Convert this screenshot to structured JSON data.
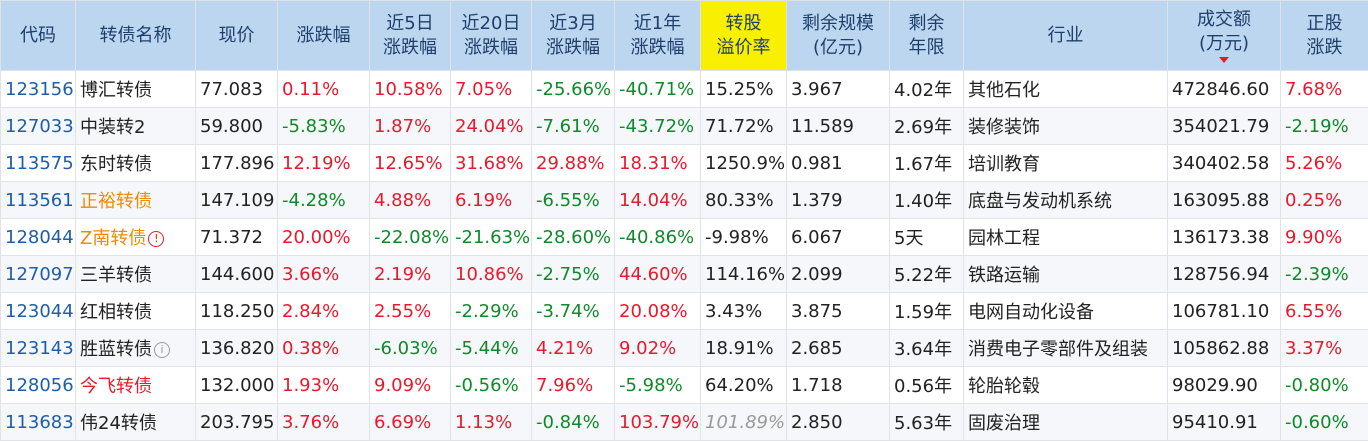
{
  "headers": {
    "code": "代码",
    "name": "转债名称",
    "price": "现价",
    "change": "涨跌幅",
    "chg5d": [
      "近5日",
      "涨跌幅"
    ],
    "chg20d": [
      "近20日",
      "涨跌幅"
    ],
    "chg3m": [
      "近3月",
      "涨跌幅"
    ],
    "chg1y": [
      "近1年",
      "涨跌幅"
    ],
    "premium": [
      "转股",
      "溢价率"
    ],
    "remain_size": [
      "剩余规模",
      "(亿元)"
    ],
    "remain_term": [
      "剩余",
      "年限"
    ],
    "industry": "行业",
    "volume": [
      "成交额",
      "(万元)"
    ],
    "stock_change": [
      "正股",
      "涨跌"
    ]
  },
  "sort_indicator": "volume-desc",
  "rows": [
    {
      "code": "123156",
      "name": "博汇转债",
      "name_style": "normal",
      "icon": "",
      "price": "77.083",
      "change": "0.11%",
      "change_dir": "up",
      "chg5d": "10.58%",
      "chg5d_dir": "up",
      "chg20d": "7.05%",
      "chg20d_dir": "up",
      "chg3m": "-25.66%",
      "chg3m_dir": "down",
      "chg1y": "-40.71%",
      "chg1y_dir": "down",
      "premium": "15.25%",
      "premium_style": "normal",
      "remain_size": "3.967",
      "remain_term": "4.02年",
      "industry": "其他石化",
      "volume": "472846.60",
      "stock_change": "7.68%",
      "stock_change_dir": "up"
    },
    {
      "code": "127033",
      "name": "中装转2",
      "name_style": "normal",
      "icon": "",
      "price": "59.800",
      "change": "-5.83%",
      "change_dir": "down",
      "chg5d": "1.87%",
      "chg5d_dir": "up",
      "chg20d": "24.04%",
      "chg20d_dir": "up",
      "chg3m": "-7.61%",
      "chg3m_dir": "down",
      "chg1y": "-43.72%",
      "chg1y_dir": "down",
      "premium": "71.72%",
      "premium_style": "normal",
      "remain_size": "11.589",
      "remain_term": "2.69年",
      "industry": "装修装饰",
      "volume": "354021.79",
      "stock_change": "-2.19%",
      "stock_change_dir": "down"
    },
    {
      "code": "113575",
      "name": "东时转债",
      "name_style": "normal",
      "icon": "",
      "price": "177.896",
      "change": "12.19%",
      "change_dir": "up",
      "chg5d": "12.65%",
      "chg5d_dir": "up",
      "chg20d": "31.68%",
      "chg20d_dir": "up",
      "chg3m": "29.88%",
      "chg3m_dir": "up",
      "chg1y": "18.31%",
      "chg1y_dir": "up",
      "premium": "1250.9%",
      "premium_style": "normal",
      "remain_size": "0.981",
      "remain_term": "1.67年",
      "industry": "培训教育",
      "volume": "340402.58",
      "stock_change": "5.26%",
      "stock_change_dir": "up"
    },
    {
      "code": "113561",
      "name": "正裕转债",
      "name_style": "orange",
      "icon": "",
      "price": "147.109",
      "change": "-4.28%",
      "change_dir": "down",
      "chg5d": "4.88%",
      "chg5d_dir": "up",
      "chg20d": "6.19%",
      "chg20d_dir": "up",
      "chg3m": "-6.55%",
      "chg3m_dir": "down",
      "chg1y": "14.04%",
      "chg1y_dir": "up",
      "premium": "80.33%",
      "premium_style": "normal",
      "remain_size": "1.379",
      "remain_term": "1.40年",
      "industry": "底盘与发动机系统",
      "volume": "163095.88",
      "stock_change": "0.25%",
      "stock_change_dir": "up"
    },
    {
      "code": "128044",
      "name": "Z南转债",
      "name_style": "orange",
      "icon": "warn",
      "price": "71.372",
      "change": "20.00%",
      "change_dir": "up",
      "chg5d": "-22.08%",
      "chg5d_dir": "down",
      "chg20d": "-21.63%",
      "chg20d_dir": "down",
      "chg3m": "-28.60%",
      "chg3m_dir": "down",
      "chg1y": "-40.86%",
      "chg1y_dir": "down",
      "premium": "-9.98%",
      "premium_style": "normal",
      "remain_size": "6.067",
      "remain_term": "5天",
      "industry": "园林工程",
      "volume": "136173.38",
      "stock_change": "9.90%",
      "stock_change_dir": "up"
    },
    {
      "code": "127097",
      "name": "三羊转债",
      "name_style": "normal",
      "icon": "",
      "price": "144.600",
      "change": "3.66%",
      "change_dir": "up",
      "chg5d": "2.19%",
      "chg5d_dir": "up",
      "chg20d": "10.86%",
      "chg20d_dir": "up",
      "chg3m": "-2.75%",
      "chg3m_dir": "down",
      "chg1y": "44.60%",
      "chg1y_dir": "up",
      "premium": "114.16%",
      "premium_style": "normal",
      "remain_size": "2.099",
      "remain_term": "5.22年",
      "industry": "铁路运输",
      "volume": "128756.94",
      "stock_change": "-2.39%",
      "stock_change_dir": "down"
    },
    {
      "code": "123044",
      "name": "红相转债",
      "name_style": "normal",
      "icon": "",
      "price": "118.250",
      "change": "2.84%",
      "change_dir": "up",
      "chg5d": "2.55%",
      "chg5d_dir": "up",
      "chg20d": "-2.29%",
      "chg20d_dir": "down",
      "chg3m": "-3.74%",
      "chg3m_dir": "down",
      "chg1y": "20.08%",
      "chg1y_dir": "up",
      "premium": "3.43%",
      "premium_style": "normal",
      "remain_size": "3.875",
      "remain_term": "1.59年",
      "industry": "电网自动化设备",
      "volume": "106781.10",
      "stock_change": "6.55%",
      "stock_change_dir": "up"
    },
    {
      "code": "123143",
      "name": "胜蓝转债",
      "name_style": "normal",
      "icon": "info",
      "price": "136.820",
      "change": "0.38%",
      "change_dir": "up",
      "chg5d": "-6.03%",
      "chg5d_dir": "down",
      "chg20d": "-5.44%",
      "chg20d_dir": "down",
      "chg3m": "4.21%",
      "chg3m_dir": "up",
      "chg1y": "9.02%",
      "chg1y_dir": "up",
      "premium": "18.91%",
      "premium_style": "normal",
      "remain_size": "2.685",
      "remain_term": "3.64年",
      "industry": "消费电子零部件及组装",
      "volume": "105862.88",
      "stock_change": "3.37%",
      "stock_change_dir": "up"
    },
    {
      "code": "128056",
      "name": "今飞转债",
      "name_style": "red",
      "icon": "",
      "price": "132.000",
      "change": "1.93%",
      "change_dir": "up",
      "chg5d": "9.09%",
      "chg5d_dir": "up",
      "chg20d": "-0.56%",
      "chg20d_dir": "down",
      "chg3m": "7.96%",
      "chg3m_dir": "up",
      "chg1y": "-5.98%",
      "chg1y_dir": "down",
      "premium": "64.20%",
      "premium_style": "normal",
      "remain_size": "1.718",
      "remain_term": "0.56年",
      "industry": "轮胎轮毂",
      "volume": "98029.90",
      "stock_change": "-0.80%",
      "stock_change_dir": "down"
    },
    {
      "code": "113683",
      "name": "伟24转债",
      "name_style": "normal",
      "icon": "",
      "price": "203.795",
      "change": "3.76%",
      "change_dir": "up",
      "chg5d": "6.69%",
      "chg5d_dir": "up",
      "chg20d": "1.13%",
      "chg20d_dir": "up",
      "chg3m": "-0.84%",
      "chg3m_dir": "down",
      "chg1y": "103.79%",
      "chg1y_dir": "up",
      "premium": "101.89%",
      "premium_style": "muted",
      "remain_size": "2.850",
      "remain_term": "5.63年",
      "industry": "固废治理",
      "volume": "95410.91",
      "stock_change": "-0.60%",
      "stock_change_dir": "down"
    }
  ]
}
